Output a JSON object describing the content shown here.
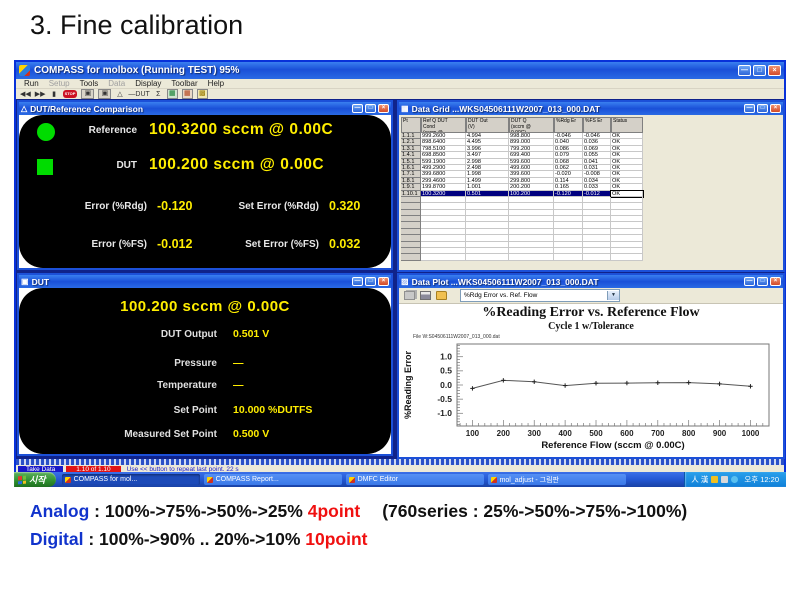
{
  "slide": {
    "title": "3. Fine calibration"
  },
  "notes": {
    "analog_label": "Analog",
    "analog_seq": " : 100%->75%->50%->25% ",
    "analog_points": "4point",
    "analog_760": "(760series : 25%->50%->75%->100%)",
    "digital_label": "Digital",
    "digital_seq": " : 100%->90% .. 20%->10% ",
    "digital_points": "10point"
  },
  "app": {
    "title": "COMPASS for molbox (Running TEST) 95%",
    "menu": [
      {
        "label": "Run",
        "disabled": false
      },
      {
        "label": "Setup",
        "disabled": true
      },
      {
        "label": "Tools",
        "disabled": false
      },
      {
        "label": "Data",
        "disabled": true
      },
      {
        "label": "Display",
        "disabled": false
      },
      {
        "label": "Toolbar",
        "disabled": false
      },
      {
        "label": "Help",
        "disabled": false
      }
    ],
    "toolbar_icons": [
      {
        "name": "previous-point-icon",
        "glyph": "◀◀"
      },
      {
        "name": "next-point-icon",
        "glyph": "▶▶"
      },
      {
        "name": "pause-icon",
        "glyph": "▮"
      },
      {
        "name": "abort-stop-icon",
        "glyph": "STOP",
        "style": "stop"
      },
      {
        "name": "camera-run-screen-icon",
        "glyph": "▣",
        "style": "boxed"
      },
      {
        "name": "camera-data-screen-icon",
        "glyph": "▣",
        "style": "boxed"
      },
      {
        "name": "delta-comparison-icon",
        "glyph": "△"
      },
      {
        "name": "dut-window-icon",
        "glyph": "—DUT"
      },
      {
        "name": "sigma-icon",
        "glyph": "Σ"
      },
      {
        "name": "molbox-display-icon",
        "glyph": "▦",
        "style": "color1"
      },
      {
        "name": "data-grid-window-icon",
        "glyph": "▦",
        "style": "color2"
      },
      {
        "name": "leak-check-icon",
        "glyph": "▩",
        "style": "color3"
      }
    ],
    "window_controls": [
      {
        "name": "minimize-button",
        "glyph": "—"
      },
      {
        "name": "maximize-button",
        "glyph": "□"
      },
      {
        "name": "close-button",
        "glyph": "×"
      }
    ]
  },
  "comparison": {
    "title": "DUT/Reference Comparison",
    "icon": "△",
    "reference_label": "Reference",
    "reference_value": "100.3200 sccm @ 0.00C",
    "dut_label": "DUT",
    "dut_value": "100.200 sccm @ 0.00C",
    "error_rdg_label": "Error (%Rdg)",
    "error_rdg_value": "-0.120",
    "set_error_rdg_label": "Set Error (%Rdg)",
    "set_error_rdg_value": "0.320",
    "error_fs_label": "Error (%FS)",
    "error_fs_value": "-0.012",
    "set_error_fs_label": "Set Error (%FS)",
    "set_error_fs_value": "0.032"
  },
  "data_grid": {
    "title": "Data Grid ...WKS04506111W2007_013_000.DAT",
    "icon": "▦",
    "columns": [
      "Pt",
      "Ref Q DUT\nCond\n(sccm @",
      "DUT Out\n(V)",
      "DUT Q\n(sccm @\n0.00C)",
      "%Rdg Er",
      "%FS Er",
      "Status"
    ],
    "rows": [
      [
        "1.1.1",
        "999.2600",
        "4.994",
        "998.800",
        "-0.046",
        "-0.046",
        "OK"
      ],
      [
        "1.2.1",
        "898.6400",
        "4.495",
        "899.000",
        "0.040",
        "0.036",
        "OK"
      ],
      [
        "1.3.1",
        "798.5100",
        "3.996",
        "799.200",
        "0.086",
        "0.069",
        "OK"
      ],
      [
        "1.4.1",
        "698.8500",
        "3.497",
        "699.400",
        "0.079",
        "0.055",
        "OK"
      ],
      [
        "1.5.1",
        "599.1900",
        "2.998",
        "599.600",
        "0.068",
        "0.041",
        "OK"
      ],
      [
        "1.6.1",
        "499.2900",
        "2.498",
        "499.600",
        "0.062",
        "0.031",
        "OK"
      ],
      [
        "1.7.1",
        "399.6800",
        "1.998",
        "399.600",
        "-0.020",
        "-0.008",
        "OK"
      ],
      [
        "1.8.1",
        "299.4600",
        "1.499",
        "299.800",
        "0.114",
        "0.034",
        "OK"
      ],
      [
        "1.9.1",
        "199.8700",
        "1.001",
        "200.200",
        "0.165",
        "0.033",
        "OK"
      ],
      [
        "1.10.1",
        "100.3200",
        "0.501",
        "100.200",
        "-0.120",
        "-0.012",
        "OK"
      ]
    ],
    "selected_row": 9
  },
  "dut_panel": {
    "title": "DUT",
    "icon": "▣",
    "headline": "100.200 sccm @ 0.00C",
    "rows": [
      {
        "label": "DUT Output",
        "value": "0.501 V"
      },
      {
        "label": "Pressure",
        "value": "—"
      },
      {
        "label": "Temperature",
        "value": "—"
      },
      {
        "label": "Set Point",
        "value": "10.000 %DUTFS"
      },
      {
        "label": "Measured Set Point",
        "value": "0.500 V"
      }
    ]
  },
  "data_plot": {
    "title": "Data Plot ...WKS04506111W2007_013_000.DAT",
    "icon": "▨",
    "toolbar_icons": [
      {
        "name": "copy-icon"
      },
      {
        "name": "print-icon"
      },
      {
        "name": "open-folder-icon"
      }
    ],
    "plot_selector": "%Rdg Error vs. Ref. Flow",
    "dropdown_arrow": "▼",
    "file_label": "File W:S04506111W2007_013_000.dat"
  },
  "chart_data": {
    "type": "line",
    "title": "%Reading Error vs. Reference Flow",
    "subtitle": "Cycle 1 w/Tolerance",
    "xlabel": "Reference Flow  (sccm @ 0.00C)",
    "ylabel": "%Reading Error",
    "x": [
      100,
      200,
      300,
      400,
      500,
      600,
      700,
      800,
      900,
      1000
    ],
    "y": [
      -0.12,
      0.165,
      0.114,
      -0.02,
      0.062,
      0.068,
      0.079,
      0.086,
      0.04,
      -0.046
    ],
    "xticks": [
      100,
      200,
      300,
      400,
      500,
      600,
      700,
      800,
      900,
      1000
    ],
    "yticks": [
      1.0,
      0.5,
      0.0,
      -0.5,
      -1.0
    ],
    "xlim": [
      50,
      1060
    ],
    "ylim": [
      -1.45,
      1.45
    ],
    "grid": false,
    "legend": "none",
    "marker": "+",
    "line_color": "#555555"
  },
  "status_bar": {
    "mode": "Take Data",
    "progress": "1.10 of 1.10",
    "message": "Use << button to repeat last point. 22 s"
  },
  "taskbar": {
    "start_label": "시작",
    "tasks": [
      "COMPASS for mol...",
      "COMPASS Report...",
      "DMFC Editor",
      "mol_adjust - 그림판"
    ],
    "tray_ime": "人 漢",
    "clock": "오후 12:20"
  }
}
